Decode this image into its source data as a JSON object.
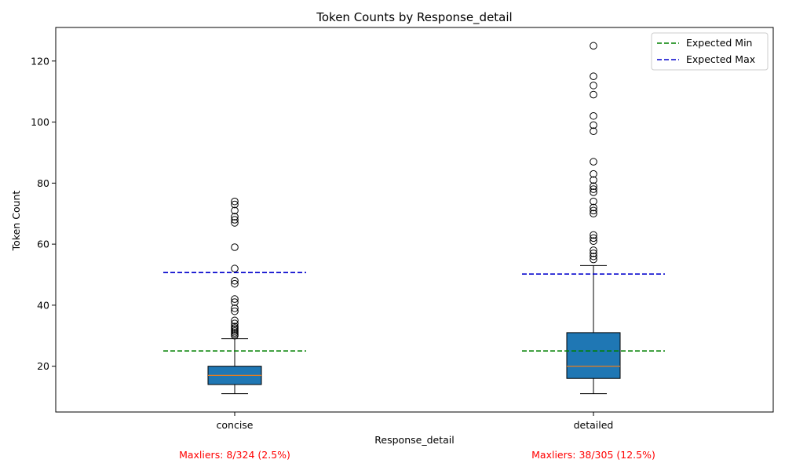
{
  "chart_data": {
    "type": "box",
    "title": "Token Counts by Response_detail",
    "xlabel": "Response_detail",
    "ylabel": "Token Count",
    "ylim": [
      5,
      131
    ],
    "yticks": [
      20,
      40,
      60,
      80,
      100,
      120
    ],
    "categories": [
      "concise",
      "detailed"
    ],
    "boxes": [
      {
        "category": "concise",
        "whisker_low": 11,
        "q1": 14,
        "median": 17,
        "q3": 20,
        "whisker_high": 29,
        "expected_min": 25,
        "expected_max": 50.7,
        "outliers": [
          30,
          30.5,
          31,
          31.5,
          32,
          32.5,
          33,
          34,
          35,
          38,
          39,
          41,
          42,
          47,
          48,
          52,
          59,
          67,
          68,
          69,
          71,
          73,
          74
        ],
        "annotation": "Maxliers: 8/324 (2.5%)"
      },
      {
        "category": "detailed",
        "whisker_low": 11,
        "q1": 16,
        "median": 20,
        "q3": 31,
        "whisker_high": 53,
        "expected_min": 25,
        "expected_max": 50.2,
        "outliers": [
          55,
          56,
          57,
          58,
          61,
          62,
          63,
          70,
          71,
          72,
          74,
          77,
          78,
          79,
          81,
          83,
          87,
          97,
          99,
          102,
          109,
          112,
          115,
          125
        ],
        "annotation": "Maxliers: 38/305 (12.5%)"
      }
    ],
    "legend": {
      "placement": "top-right",
      "entries": [
        {
          "label": "Expected Min",
          "color": "#008000",
          "style": "dashed"
        },
        {
          "label": "Expected Max",
          "color": "#0000cc",
          "style": "dashed"
        }
      ]
    },
    "colors": {
      "box_fill": "#1f77b4",
      "median": "#ff7f0e",
      "annotation": "#ff0000",
      "expected_min": "#008000",
      "expected_max": "#0000cc"
    },
    "grid": false
  }
}
